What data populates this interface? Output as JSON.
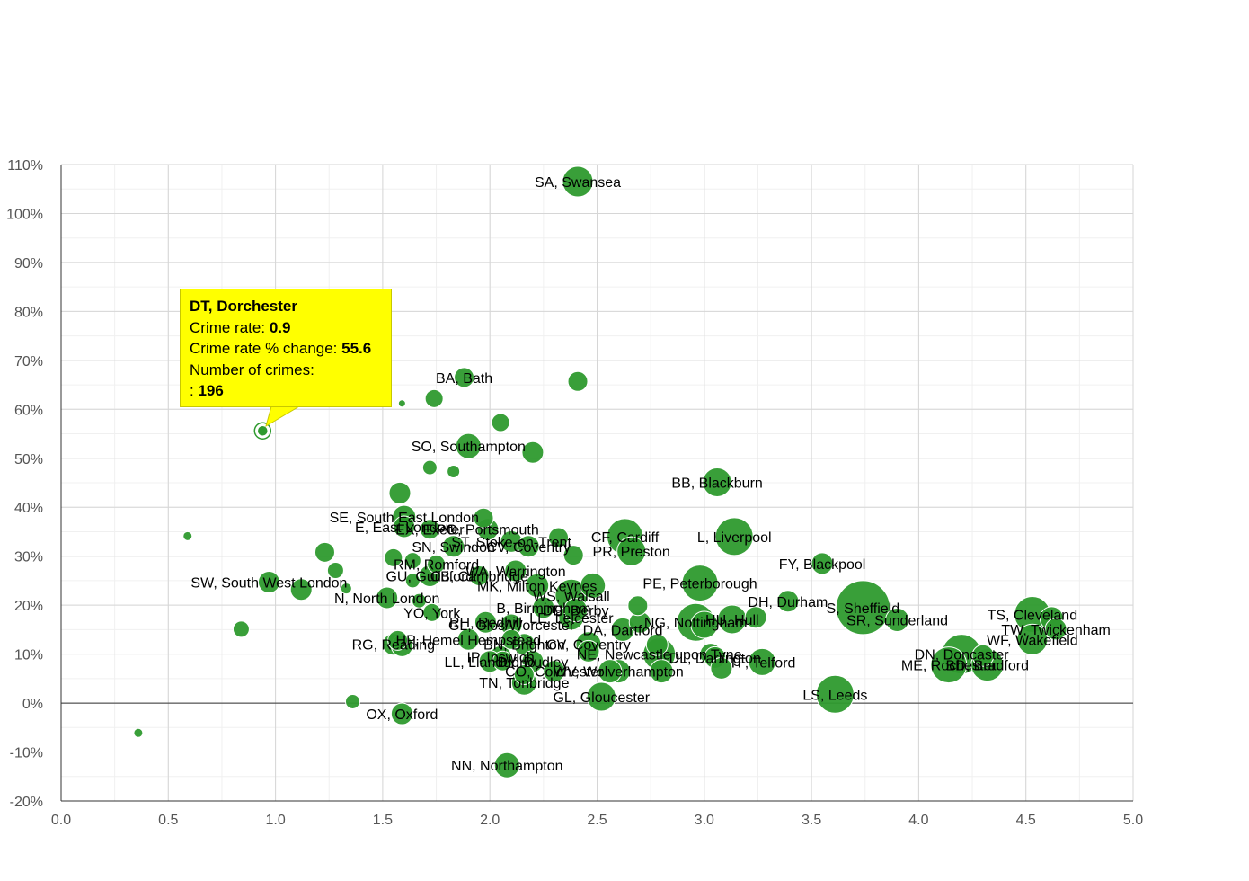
{
  "chart_data": {
    "type": "scatter",
    "xlim": [
      0,
      5
    ],
    "ylim": [
      -20,
      110
    ],
    "x_ticks": [
      "0.0",
      "0.5",
      "1.0",
      "1.5",
      "2.0",
      "2.5",
      "3.0",
      "3.5",
      "4.0",
      "4.5",
      "5.0"
    ],
    "y_ticks": [
      "-20%",
      "-10%",
      "0%",
      "10%",
      "20%",
      "30%",
      "40%",
      "50%",
      "60%",
      "70%",
      "80%",
      "90%",
      "100%",
      "110%"
    ],
    "grid": true,
    "point_color": "#2e9a2e",
    "points": [
      {
        "label": "SA, Swansea",
        "x": 2.41,
        "y": 106.5,
        "r": 17
      },
      {
        "label": "BA, Bath",
        "x": 1.88,
        "y": 66.5,
        "r": 11
      },
      {
        "label": "",
        "x": 2.41,
        "y": 65.7,
        "r": 11
      },
      {
        "label": "",
        "x": 1.59,
        "y": 61.2,
        "r": 4
      },
      {
        "label": "",
        "x": 1.74,
        "y": 62.2,
        "r": 10
      },
      {
        "label": "",
        "x": 2.05,
        "y": 57.3,
        "r": 10
      },
      {
        "label": "DT, Dorchester",
        "x": 0.94,
        "y": 55.6,
        "r": 6
      },
      {
        "label": "SO, Southampton",
        "x": 1.9,
        "y": 52.5,
        "r": 14
      },
      {
        "label": "",
        "x": 2.2,
        "y": 51.2,
        "r": 12
      },
      {
        "label": "",
        "x": 1.72,
        "y": 48.1,
        "r": 8
      },
      {
        "label": "",
        "x": 1.83,
        "y": 47.3,
        "r": 7
      },
      {
        "label": "BB, Blackburn",
        "x": 3.06,
        "y": 45.1,
        "r": 16
      },
      {
        "label": "",
        "x": 1.58,
        "y": 42.9,
        "r": 12
      },
      {
        "label": "SE, South East London",
        "x": 1.6,
        "y": 38.0,
        "r": 13
      },
      {
        "label": "",
        "x": 1.97,
        "y": 37.8,
        "r": 11
      },
      {
        "label": "E, East London",
        "x": 1.6,
        "y": 36.0,
        "r": 12
      },
      {
        "label": "EX, Exeter",
        "x": 1.72,
        "y": 35.5,
        "r": 11
      },
      {
        "label": "PO, Portsmouth",
        "x": 1.99,
        "y": 35.5,
        "r": 12
      },
      {
        "label": "",
        "x": 0.59,
        "y": 34.1,
        "r": 5
      },
      {
        "label": "CF, Cardiff",
        "x": 2.63,
        "y": 34.0,
        "r": 20
      },
      {
        "label": "L, Liverpool",
        "x": 3.14,
        "y": 34.0,
        "r": 21
      },
      {
        "label": "ST, Stoke-on-Trent",
        "x": 2.1,
        "y": 33.0,
        "r": 12
      },
      {
        "label": "",
        "x": 2.32,
        "y": 33.8,
        "r": 11
      },
      {
        "label": "SN, Swindon",
        "x": 1.83,
        "y": 32.0,
        "r": 12
      },
      {
        "label": "CV, Coventry",
        "x": 2.18,
        "y": 32.0,
        "r": 12
      },
      {
        "label": "PR, Preston",
        "x": 2.66,
        "y": 31.0,
        "r": 16
      },
      {
        "label": "",
        "x": 1.23,
        "y": 30.8,
        "r": 11
      },
      {
        "label": "",
        "x": 2.39,
        "y": 30.2,
        "r": 11
      },
      {
        "label": "",
        "x": 1.55,
        "y": 29.7,
        "r": 10
      },
      {
        "label": "",
        "x": 1.64,
        "y": 29.1,
        "r": 9
      },
      {
        "label": "FY, Blackpool",
        "x": 3.55,
        "y": 28.5,
        "r": 12
      },
      {
        "label": "RM, Romford",
        "x": 1.75,
        "y": 28.4,
        "r": 10
      },
      {
        "label": "WA, Warrington",
        "x": 2.12,
        "y": 27.0,
        "r": 12
      },
      {
        "label": "",
        "x": 1.28,
        "y": 27.1,
        "r": 9
      },
      {
        "label": "GU, Guildford",
        "x": 1.72,
        "y": 26.0,
        "r": 12
      },
      {
        "label": "CB, Cambridge",
        "x": 1.95,
        "y": 26.0,
        "r": 11
      },
      {
        "label": "",
        "x": 1.64,
        "y": 25.0,
        "r": 8
      },
      {
        "label": "SW, South West London",
        "x": 0.97,
        "y": 24.7,
        "r": 12
      },
      {
        "label": "PE, Peterborough",
        "x": 2.98,
        "y": 24.5,
        "r": 20
      },
      {
        "label": "MK, Milton Keynes",
        "x": 2.22,
        "y": 24.0,
        "r": 13
      },
      {
        "label": "",
        "x": 2.48,
        "y": 24.0,
        "r": 14
      },
      {
        "label": "",
        "x": 1.12,
        "y": 23.2,
        "r": 12
      },
      {
        "label": "",
        "x": 1.33,
        "y": 23.4,
        "r": 6
      },
      {
        "label": "WS, Walsall",
        "x": 2.38,
        "y": 22.0,
        "r": 18
      },
      {
        "label": "N, North London",
        "x": 1.52,
        "y": 21.5,
        "r": 12
      },
      {
        "label": "DH, Durham",
        "x": 3.39,
        "y": 20.8,
        "r": 12
      },
      {
        "label": "",
        "x": 1.67,
        "y": 20.9,
        "r": 8
      },
      {
        "label": "B, Birmingham",
        "x": 2.25,
        "y": 19.5,
        "r": 12
      },
      {
        "label": "S, Sheffield",
        "x": 3.74,
        "y": 19.5,
        "r": 30
      },
      {
        "label": "DE, Derby",
        "x": 2.4,
        "y": 19.0,
        "r": 13
      },
      {
        "label": "",
        "x": 2.69,
        "y": 19.9,
        "r": 11
      },
      {
        "label": "YO, York",
        "x": 1.73,
        "y": 18.5,
        "r": 10
      },
      {
        "label": "TS, Cleveland",
        "x": 4.53,
        "y": 18.1,
        "r": 20
      },
      {
        "label": "",
        "x": 4.62,
        "y": 17.3,
        "r": 13
      },
      {
        "label": "SR, Sunderland",
        "x": 3.9,
        "y": 17.0,
        "r": 13
      },
      {
        "label": "HU, Hull",
        "x": 3.13,
        "y": 17.1,
        "r": 16
      },
      {
        "label": "",
        "x": 3.24,
        "y": 17.5,
        "r": 12
      },
      {
        "label": "LE, Leicester",
        "x": 2.38,
        "y": 17.5,
        "r": 14
      },
      {
        "label": "RH, Redhill",
        "x": 1.98,
        "y": 16.5,
        "r": 12
      },
      {
        "label": "NG, Nottingham",
        "x": 2.96,
        "y": 16.5,
        "r": 21
      },
      {
        "label": "GL, Glos/Worcester",
        "x": 2.1,
        "y": 16.0,
        "r": 12
      },
      {
        "label": "",
        "x": 2.7,
        "y": 16.5,
        "r": 12
      },
      {
        "label": "DA, Dartford",
        "x": 2.62,
        "y": 15.0,
        "r": 13
      },
      {
        "label": "TW, Twickenham",
        "x": 4.64,
        "y": 15.1,
        "r": 12
      },
      {
        "label": "",
        "x": 0.84,
        "y": 15.1,
        "r": 9
      },
      {
        "label": "",
        "x": 3.0,
        "y": 16.0,
        "r": 15
      },
      {
        "label": "HP, Hemel Hempstead",
        "x": 1.9,
        "y": 13.0,
        "r": 12
      },
      {
        "label": "WF, Wakefield",
        "x": 4.53,
        "y": 13.0,
        "r": 17
      },
      {
        "label": "",
        "x": 1.57,
        "y": 12.8,
        "r": 11
      },
      {
        "label": "RG, Reading",
        "x": 1.55,
        "y": 12.0,
        "r": 12
      },
      {
        "label": "",
        "x": 1.59,
        "y": 11.7,
        "r": 12
      },
      {
        "label": "",
        "x": 2.1,
        "y": 13.0,
        "r": 11
      },
      {
        "label": "BN, Brighton",
        "x": 2.16,
        "y": 12.0,
        "r": 12
      },
      {
        "label": "CV, Coventry",
        "x": 2.46,
        "y": 12.0,
        "r": 14
      },
      {
        "label": "NE, Newcastle upon Tyne",
        "x": 2.79,
        "y": 10.0,
        "r": 18
      },
      {
        "label": "",
        "x": 2.46,
        "y": 10.6,
        "r": 12
      },
      {
        "label": "",
        "x": 2.78,
        "y": 11.9,
        "r": 12
      },
      {
        "label": "",
        "x": 3.03,
        "y": 10.0,
        "r": 12
      },
      {
        "label": "DN, Doncaster",
        "x": 4.2,
        "y": 10.0,
        "r": 22
      },
      {
        "label": "",
        "x": 4.3,
        "y": 9.7,
        "r": 12
      },
      {
        "label": "IP, Ipswich",
        "x": 2.05,
        "y": 9.5,
        "r": 12
      },
      {
        "label": "DL, Darlington",
        "x": 3.05,
        "y": 9.3,
        "r": 12
      },
      {
        "label": "LL, Llandudno",
        "x": 2.0,
        "y": 8.5,
        "r": 12
      },
      {
        "label": "DY, Dudley",
        "x": 2.2,
        "y": 8.5,
        "r": 12
      },
      {
        "label": "TF, Telford",
        "x": 3.27,
        "y": 8.4,
        "r": 15
      },
      {
        "label": "",
        "x": 2.06,
        "y": 8.6,
        "r": 11
      },
      {
        "label": "ME, Rochester",
        "x": 4.14,
        "y": 7.8,
        "r": 20
      },
      {
        "label": "BD, Bradford",
        "x": 4.32,
        "y": 7.8,
        "r": 18
      },
      {
        "label": "",
        "x": 3.08,
        "y": 7.1,
        "r": 12
      },
      {
        "label": "CO, Colchester",
        "x": 2.3,
        "y": 6.5,
        "r": 12
      },
      {
        "label": "WV, Wolverhampton",
        "x": 2.6,
        "y": 6.5,
        "r": 13
      },
      {
        "label": "",
        "x": 2.8,
        "y": 6.5,
        "r": 13
      },
      {
        "label": "",
        "x": 2.16,
        "y": 5.8,
        "r": 11
      },
      {
        "label": "",
        "x": 2.56,
        "y": 6.5,
        "r": 13
      },
      {
        "label": "TN, Tonbridge",
        "x": 2.16,
        "y": 4.2,
        "r": 14
      },
      {
        "label": "LS, Leeds",
        "x": 3.61,
        "y": 1.8,
        "r": 21
      },
      {
        "label": "GL, Gloucester",
        "x": 2.52,
        "y": 1.3,
        "r": 16
      },
      {
        "label": "",
        "x": 1.36,
        "y": 0.3,
        "r": 8
      },
      {
        "label": "OX, Oxford",
        "x": 1.59,
        "y": -2.2,
        "r": 12
      },
      {
        "label": "",
        "x": 0.36,
        "y": -6.1,
        "r": 5
      },
      {
        "label": "NN, Northampton",
        "x": 2.08,
        "y": -12.7,
        "r": 14
      }
    ],
    "tooltip": {
      "title": "DT, Dorchester",
      "rate_label": "Crime rate:",
      "rate_value": "0.9",
      "change_label": "Crime rate % change:",
      "change_value": "55.6",
      "count_label": "Number of crimes:",
      "count_prefix": ":",
      "count_value": "196"
    }
  }
}
